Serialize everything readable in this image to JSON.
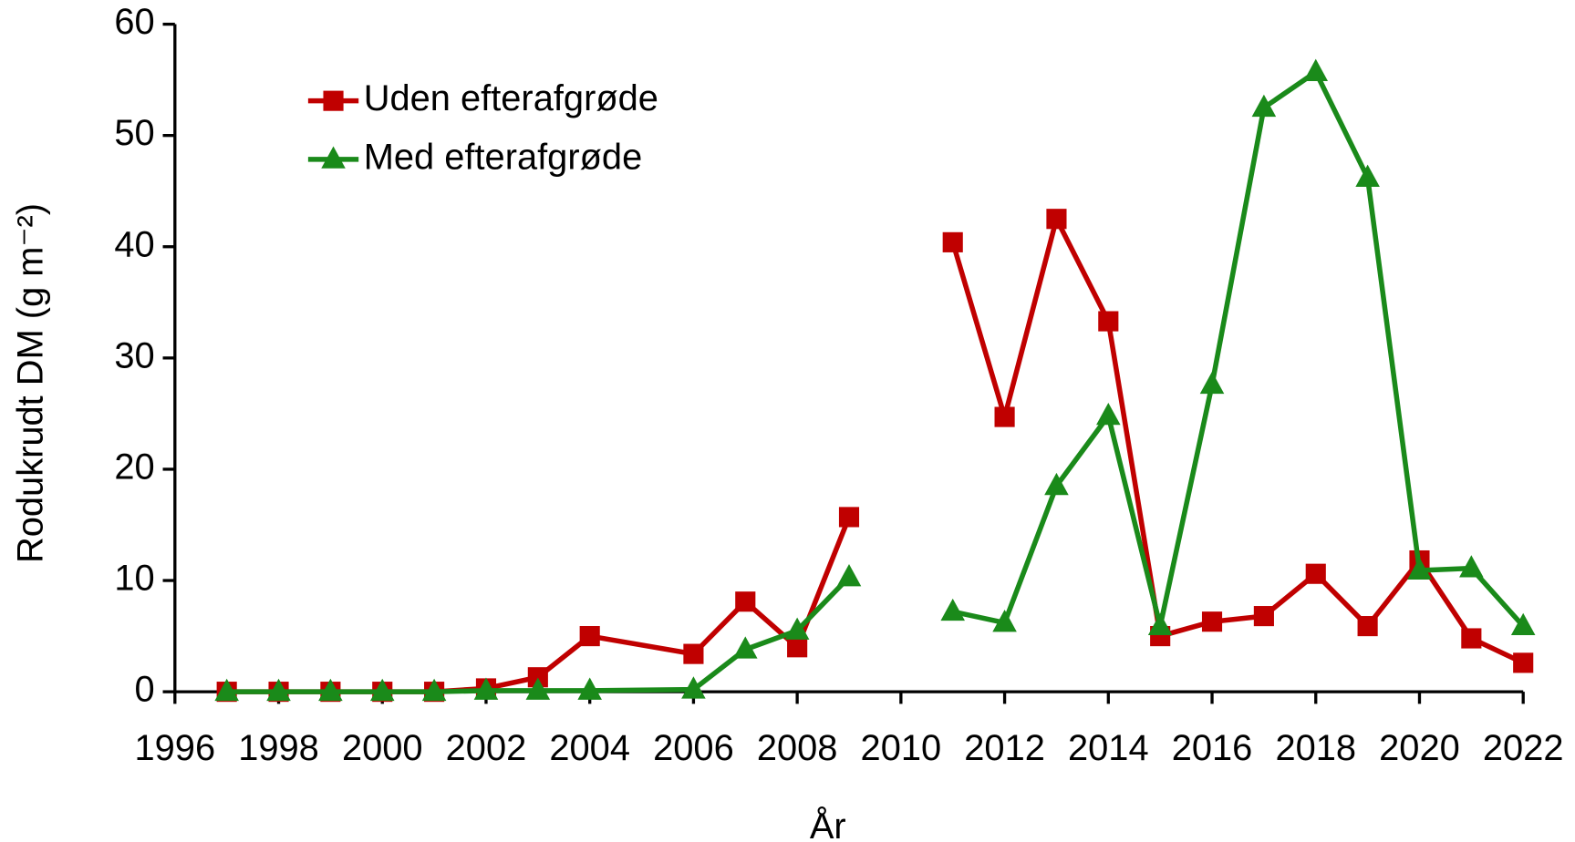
{
  "chart_data": {
    "type": "line",
    "x_label": "År",
    "y_label": "Rodukrudt DM (g m⁻²)",
    "x": [
      1997,
      1998,
      1999,
      2000,
      2001,
      2002,
      2003,
      2004,
      2006,
      2007,
      2008,
      2009,
      2010,
      2011,
      2012,
      2013,
      2014,
      2015,
      2016,
      2017,
      2018,
      2019,
      2020,
      2021,
      2022
    ],
    "series": [
      {
        "name": "Uden efterafgrøde",
        "color": "#c00000",
        "marker": "square",
        "values": [
          0,
          0,
          0,
          0,
          0,
          0.3,
          1.3,
          5.0,
          3.4,
          8.1,
          4.0,
          15.7,
          null,
          40.4,
          24.7,
          42.5,
          33.3,
          5.0,
          6.3,
          6.8,
          10.6,
          5.9,
          11.8,
          4.8,
          2.6
        ]
      },
      {
        "name": "Med efterafgrøde",
        "color": "#1a8a1a",
        "marker": "triangle",
        "values": [
          0,
          0,
          0,
          0,
          0,
          0.1,
          0.1,
          0.1,
          0.2,
          3.8,
          5.5,
          10.3,
          null,
          7.2,
          6.2,
          18.5,
          24.8,
          5.9,
          27.6,
          52.5,
          55.7,
          46.2,
          10.9,
          11.1,
          5.9
        ]
      }
    ],
    "xlim": [
      1996,
      2022
    ],
    "xticks": [
      1996,
      1998,
      2000,
      2002,
      2004,
      2006,
      2008,
      2010,
      2012,
      2014,
      2016,
      2018,
      2020,
      2022
    ],
    "ylim": [
      0,
      60
    ],
    "yticks": [
      0,
      10,
      20,
      30,
      40,
      50,
      60
    ],
    "grid": false,
    "legend": "upper left"
  }
}
